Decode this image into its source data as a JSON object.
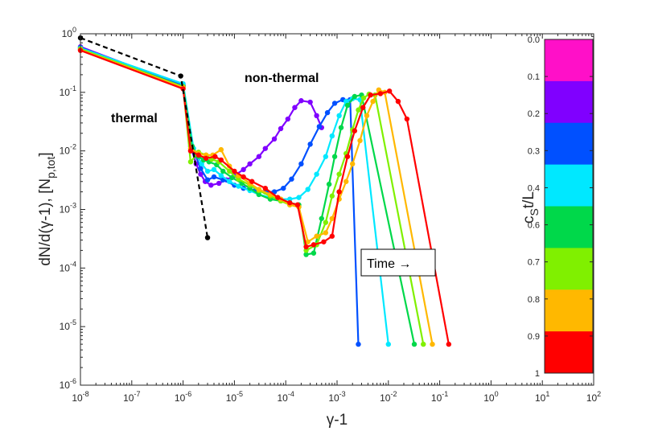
{
  "chart_data": {
    "type": "line",
    "xscale": "log",
    "yscale": "log",
    "xlim": [
      1e-08,
      100
    ],
    "ylim": [
      1e-06,
      1
    ],
    "xlabel": "γ-1",
    "ylabel_main": "dN/d(γ-1), [N",
    "ylabel_sub": "p,tot",
    "ylabel_end": "]",
    "x_ticks": [
      {
        "value": 1e-08,
        "base": "10",
        "exp": "-8"
      },
      {
        "value": 1e-07,
        "base": "10",
        "exp": "-7"
      },
      {
        "value": 1e-06,
        "base": "10",
        "exp": "-6"
      },
      {
        "value": 1e-05,
        "base": "10",
        "exp": "-5"
      },
      {
        "value": 0.0001,
        "base": "10",
        "exp": "-4"
      },
      {
        "value": 0.001,
        "base": "10",
        "exp": "-3"
      },
      {
        "value": 0.01,
        "base": "10",
        "exp": "-2"
      },
      {
        "value": 0.1,
        "base": "10",
        "exp": "-1"
      },
      {
        "value": 1,
        "base": "10",
        "exp": "0"
      },
      {
        "value": 10,
        "base": "10",
        "exp": "1"
      },
      {
        "value": 100,
        "base": "10",
        "exp": "2"
      }
    ],
    "y_ticks": [
      {
        "value": 1e-06,
        "base": "10",
        "exp": "-6"
      },
      {
        "value": 1e-05,
        "base": "10",
        "exp": "-5"
      },
      {
        "value": 0.0001,
        "base": "10",
        "exp": "-4"
      },
      {
        "value": 0.001,
        "base": "10",
        "exp": "-3"
      },
      {
        "value": 0.01,
        "base": "10",
        "exp": "-2"
      },
      {
        "value": 0.1,
        "base": "10",
        "exp": "-1"
      },
      {
        "value": 1,
        "base": "10",
        "exp": "0"
      }
    ],
    "annotations": {
      "thermal": "thermal",
      "nonthermal": "non-thermal",
      "time_box": "Time →"
    },
    "initial_series": {
      "name": "initial",
      "color": "#000000",
      "style": "dashed",
      "points": [
        [
          1e-08,
          0.85
        ],
        [
          9e-07,
          0.19
        ],
        [
          3e-06,
          0.00033
        ]
      ]
    },
    "series": [
      {
        "name": "t=0.2",
        "color": "#8000ff",
        "points": [
          [
            1e-08,
            0.6
          ],
          [
            1e-06,
            0.13
          ],
          [
            1.4e-06,
            0.012
          ],
          [
            1.8e-06,
            0.006
          ],
          [
            2.2e-06,
            0.004
          ],
          [
            2.7e-06,
            0.003
          ],
          [
            3.5e-06,
            0.0026
          ],
          [
            5e-06,
            0.0028
          ],
          [
            7e-06,
            0.0032
          ],
          [
            1e-05,
            0.0038
          ],
          [
            1.5e-05,
            0.0048
          ],
          [
            2e-05,
            0.006
          ],
          [
            3e-05,
            0.008
          ],
          [
            4e-05,
            0.011
          ],
          [
            6e-05,
            0.016
          ],
          [
            8e-05,
            0.024
          ],
          [
            0.00011,
            0.035
          ],
          [
            0.00015,
            0.055
          ],
          [
            0.0002,
            0.072
          ],
          [
            0.0003,
            0.068
          ],
          [
            0.0004,
            0.04
          ],
          [
            0.0005,
            0.025
          ]
        ]
      },
      {
        "name": "t=0.3",
        "color": "#0050ff",
        "points": [
          [
            1e-08,
            0.58
          ],
          [
            1e-06,
            0.13
          ],
          [
            1.5e-06,
            0.012
          ],
          [
            2.2e-06,
            0.005
          ],
          [
            3e-06,
            0.0032
          ],
          [
            4e-06,
            0.0036
          ],
          [
            6e-06,
            0.0032
          ],
          [
            1e-05,
            0.0026
          ],
          [
            1.5e-05,
            0.0023
          ],
          [
            2.5e-05,
            0.0021
          ],
          [
            4e-05,
            0.002
          ],
          [
            6e-05,
            0.002
          ],
          [
            9e-05,
            0.0023
          ],
          [
            0.00013,
            0.0033
          ],
          [
            0.0002,
            0.006
          ],
          [
            0.0003,
            0.013
          ],
          [
            0.00045,
            0.026
          ],
          [
            0.00065,
            0.045
          ],
          [
            0.0009,
            0.065
          ],
          [
            0.0013,
            0.075
          ],
          [
            0.0018,
            0.075
          ],
          [
            0.0026,
            5e-06
          ]
        ]
      },
      {
        "name": "t=0.4",
        "color": "#00e8ff",
        "points": [
          [
            1e-08,
            0.57
          ],
          [
            1e-06,
            0.14
          ],
          [
            1.6e-06,
            0.011
          ],
          [
            2.3e-06,
            0.006
          ],
          [
            3e-06,
            0.0045
          ],
          [
            4e-06,
            0.0048
          ],
          [
            5.5e-06,
            0.0038
          ],
          [
            8e-06,
            0.003
          ],
          [
            1.2e-05,
            0.0025
          ],
          [
            2e-05,
            0.0021
          ],
          [
            3e-05,
            0.0018
          ],
          [
            5e-05,
            0.0016
          ],
          [
            8e-05,
            0.0015
          ],
          [
            0.00012,
            0.0015
          ],
          [
            0.00018,
            0.0016
          ],
          [
            0.00027,
            0.0022
          ],
          [
            0.0004,
            0.004
          ],
          [
            0.0006,
            0.008
          ],
          [
            0.0008,
            0.018
          ],
          [
            0.0011,
            0.04
          ],
          [
            0.0015,
            0.07
          ],
          [
            0.002,
            0.078
          ],
          [
            0.0028,
            0.075
          ],
          [
            0.01,
            5e-06
          ]
        ]
      },
      {
        "name": "t=0.6",
        "color": "#00d84a",
        "points": [
          [
            1e-08,
            0.55
          ],
          [
            1e-06,
            0.125
          ],
          [
            1.5e-06,
            0.012
          ],
          [
            2e-06,
            0.008
          ],
          [
            2.5e-06,
            0.007
          ],
          [
            3.2e-06,
            0.0065
          ],
          [
            4.5e-06,
            0.0058
          ],
          [
            6e-06,
            0.0045
          ],
          [
            9e-06,
            0.0035
          ],
          [
            1.4e-05,
            0.0028
          ],
          [
            2e-05,
            0.0023
          ],
          [
            3e-05,
            0.0018
          ],
          [
            5e-05,
            0.0015
          ],
          [
            8e-05,
            0.0014
          ],
          [
            0.00012,
            0.0013
          ],
          [
            0.00018,
            0.0012
          ],
          [
            0.00025,
            0.00017
          ],
          [
            0.00035,
            0.00018
          ],
          [
            0.0005,
            0.0007
          ],
          [
            0.0007,
            0.0027
          ],
          [
            0.0009,
            0.008
          ],
          [
            0.0012,
            0.025
          ],
          [
            0.0016,
            0.06
          ],
          [
            0.0022,
            0.085
          ],
          [
            0.003,
            0.09
          ],
          [
            0.032,
            5e-06
          ]
        ]
      },
      {
        "name": "t=0.7",
        "color": "#80f000",
        "points": [
          [
            1e-08,
            0.55
          ],
          [
            1e-06,
            0.125
          ],
          [
            1.4e-06,
            0.0065
          ],
          [
            2e-06,
            0.0095
          ],
          [
            2.8e-06,
            0.0085
          ],
          [
            3.6e-06,
            0.0072
          ],
          [
            5e-06,
            0.0065
          ],
          [
            8e-06,
            0.0045
          ],
          [
            1.2e-05,
            0.0033
          ],
          [
            2e-05,
            0.0026
          ],
          [
            3e-05,
            0.0021
          ],
          [
            5e-05,
            0.0017
          ],
          [
            8e-05,
            0.0014
          ],
          [
            0.00012,
            0.0012
          ],
          [
            0.00018,
            0.0011
          ],
          [
            0.00025,
            0.0002
          ],
          [
            0.0004,
            0.00025
          ],
          [
            0.0006,
            0.0006
          ],
          [
            0.0008,
            0.0017
          ],
          [
            0.0011,
            0.004
          ],
          [
            0.0015,
            0.009
          ],
          [
            0.002,
            0.023
          ],
          [
            0.0026,
            0.05
          ],
          [
            0.0033,
            0.08
          ],
          [
            0.0042,
            0.093
          ],
          [
            0.0055,
            0.09
          ],
          [
            0.048,
            5e-06
          ]
        ]
      },
      {
        "name": "t=0.8",
        "color": "#ffb800",
        "points": [
          [
            1e-08,
            0.53
          ],
          [
            1e-06,
            0.12
          ],
          [
            1.4e-06,
            0.011
          ],
          [
            2e-06,
            0.009
          ],
          [
            2.8e-06,
            0.0085
          ],
          [
            3.8e-06,
            0.0085
          ],
          [
            5.5e-06,
            0.0105
          ],
          [
            8e-06,
            0.0055
          ],
          [
            1.2e-05,
            0.0038
          ],
          [
            2e-05,
            0.0028
          ],
          [
            3e-05,
            0.0022
          ],
          [
            5e-05,
            0.0018
          ],
          [
            8e-05,
            0.0015
          ],
          [
            0.00012,
            0.0012
          ],
          [
            0.00018,
            0.0011
          ],
          [
            0.00027,
            0.00028
          ],
          [
            0.0004,
            0.00035
          ],
          [
            0.0006,
            0.0004
          ],
          [
            0.0008,
            0.0007
          ],
          [
            0.0011,
            0.0015
          ],
          [
            0.0015,
            0.003
          ],
          [
            0.002,
            0.006
          ],
          [
            0.0028,
            0.015
          ],
          [
            0.0038,
            0.04
          ],
          [
            0.005,
            0.07
          ],
          [
            0.0065,
            0.11
          ],
          [
            0.0085,
            0.1
          ],
          [
            0.072,
            5e-06
          ]
        ]
      },
      {
        "name": "t=0.9",
        "color": "#ff0000",
        "points": [
          [
            1e-08,
            0.52
          ],
          [
            1e-06,
            0.115
          ],
          [
            1.4e-06,
            0.01
          ],
          [
            2e-06,
            0.0085
          ],
          [
            2.8e-06,
            0.0075
          ],
          [
            4.2e-06,
            0.008
          ],
          [
            5.5e-06,
            0.007
          ],
          [
            1e-05,
            0.0045
          ],
          [
            1.5e-05,
            0.0036
          ],
          [
            2.2e-05,
            0.003
          ],
          [
            4e-05,
            0.0023
          ],
          [
            7e-05,
            0.0016
          ],
          [
            0.00012,
            0.0013
          ],
          [
            0.00017,
            0.0012
          ],
          [
            0.00025,
            0.00023
          ],
          [
            0.00035,
            0.00025
          ],
          [
            0.00055,
            0.00028
          ],
          [
            0.0008,
            0.00035
          ],
          [
            0.0011,
            0.002
          ],
          [
            0.0016,
            0.008
          ],
          [
            0.0022,
            0.022
          ],
          [
            0.0032,
            0.055
          ],
          [
            0.0045,
            0.09
          ],
          [
            0.007,
            0.095
          ],
          [
            0.0105,
            0.105
          ],
          [
            0.0155,
            0.07
          ],
          [
            0.023,
            0.035
          ],
          [
            0.15,
            5e-06
          ]
        ]
      }
    ],
    "colorbar": {
      "label": "c",
      "label_sub": "S",
      "label_end": "t/L",
      "ticks": [
        "0.0",
        "0.1",
        "0.2",
        "0.3",
        "0.4",
        "0.6",
        "0.7",
        "0.8",
        "0.9",
        "1"
      ],
      "colors": [
        "#ff10c8",
        "#8000ff",
        "#0050ff",
        "#00e8ff",
        "#00d84a",
        "#80f000",
        "#ffb800",
        "#ff0000"
      ]
    }
  }
}
